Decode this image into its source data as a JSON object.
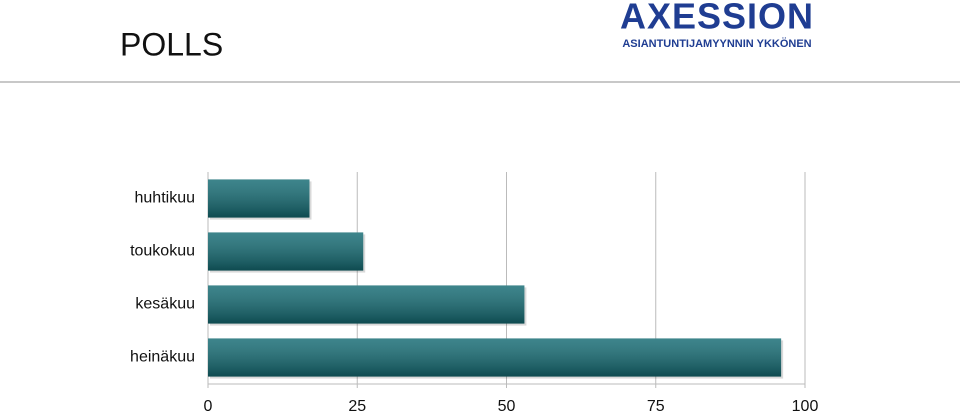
{
  "header": {
    "title": "POLLS",
    "logo": "AXESSION",
    "tagline": "ASIANTUNTIJAMYYNNIN YKKÖNEN"
  },
  "chart_data": {
    "type": "bar",
    "orientation": "horizontal",
    "categories": [
      "huhtikuu",
      "toukokuu",
      "kesäkuu",
      "heinäkuu"
    ],
    "values": [
      17,
      26,
      53,
      96
    ],
    "color": "#136a72",
    "xlim": [
      0,
      100
    ],
    "xticks": [
      0,
      25,
      50,
      75,
      100
    ],
    "grid": true
  }
}
